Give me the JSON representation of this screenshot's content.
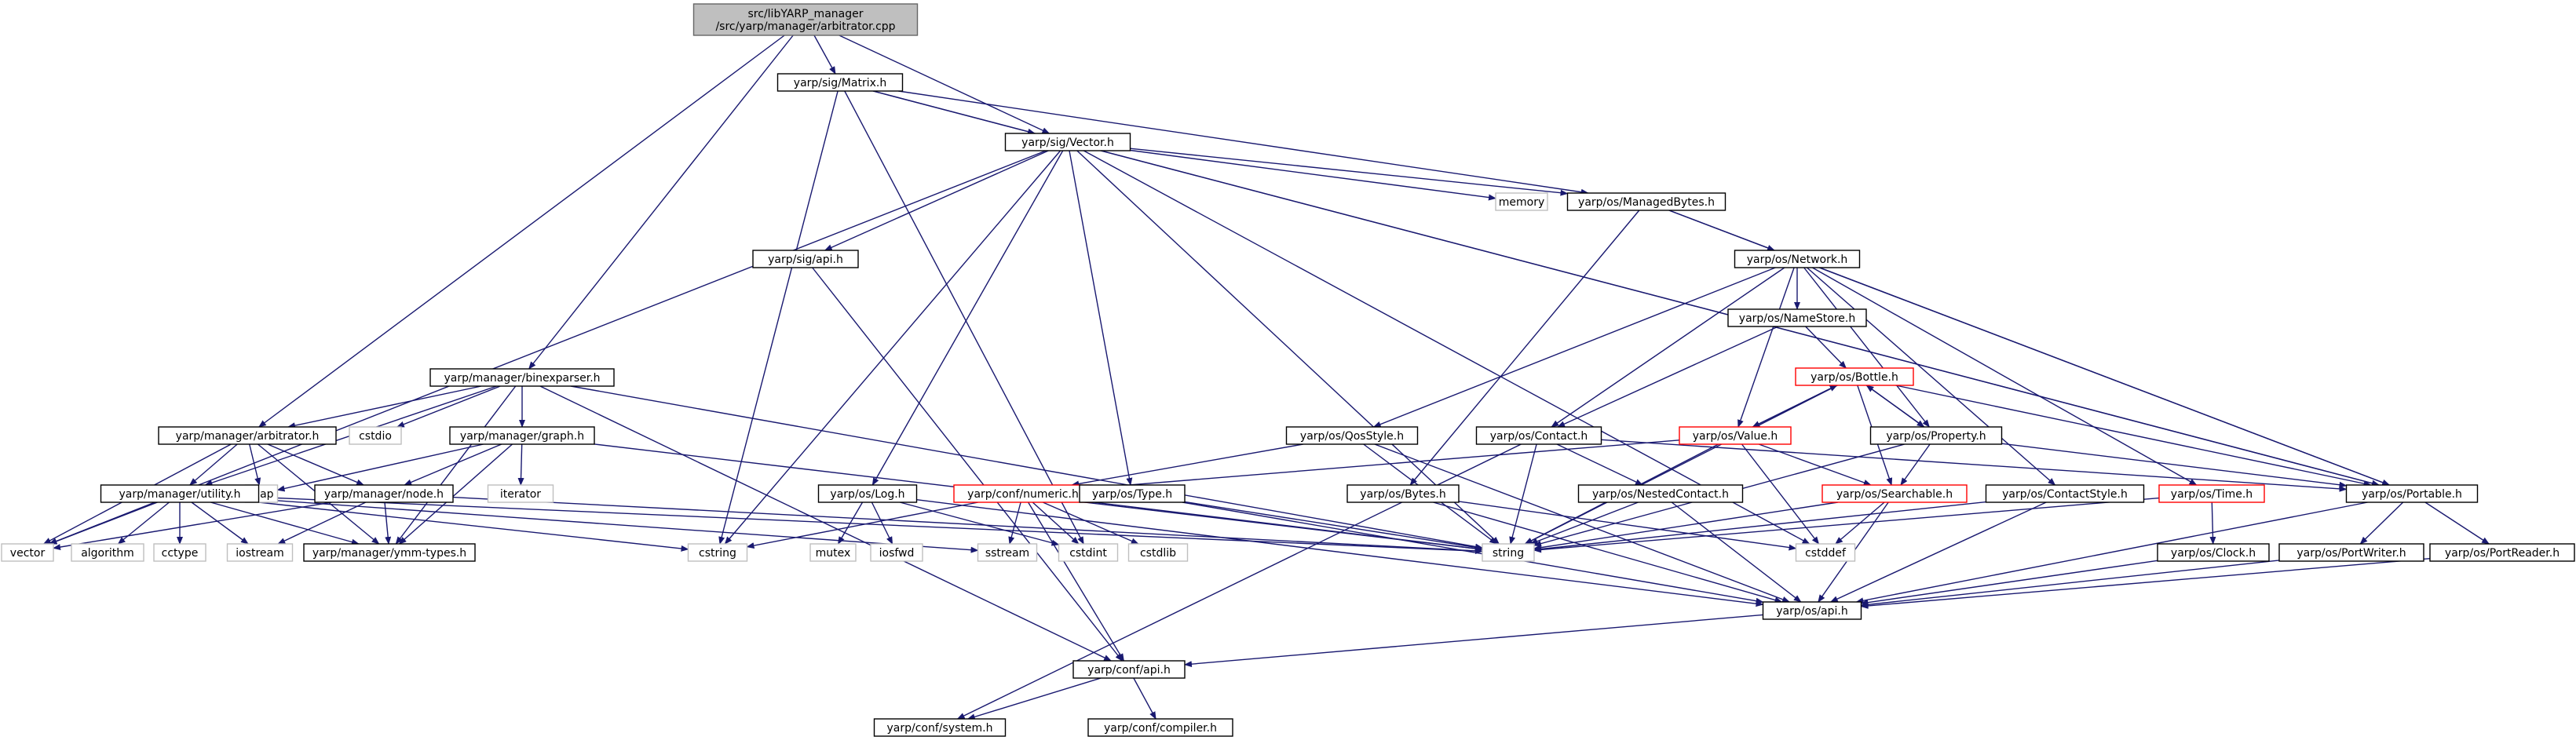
{
  "colors": {
    "edge": "#191970",
    "default_border": "#000000",
    "default_fill": "#ffffff",
    "root_fill": "#bfbfbf",
    "root_border": "#666666",
    "system_border": "#bfbfbf",
    "system_text": "#555555",
    "truncated_border": "#ff0000"
  },
  "nodes": [
    {
      "id": "root",
      "lines": [
        "src/libYARP_manager",
        "/src/yarp/manager/arbitrator.cpp"
      ],
      "kind": "root"
    },
    {
      "id": "matrix",
      "lines": [
        "yarp/sig/Matrix.h"
      ],
      "kind": "file"
    },
    {
      "id": "vector_h",
      "lines": [
        "yarp/sig/Vector.h"
      ],
      "kind": "file"
    },
    {
      "id": "memory",
      "lines": [
        "memory"
      ],
      "kind": "system"
    },
    {
      "id": "managedbytes",
      "lines": [
        "yarp/os/ManagedBytes.h"
      ],
      "kind": "file"
    },
    {
      "id": "sigapi",
      "lines": [
        "yarp/sig/api.h"
      ],
      "kind": "file"
    },
    {
      "id": "network",
      "lines": [
        "yarp/os/Network.h"
      ],
      "kind": "file"
    },
    {
      "id": "namestore",
      "lines": [
        "yarp/os/NameStore.h"
      ],
      "kind": "file"
    },
    {
      "id": "bottle",
      "lines": [
        "yarp/os/Bottle.h"
      ],
      "kind": "truncated"
    },
    {
      "id": "binexparser",
      "lines": [
        "yarp/manager/binexparser.h"
      ],
      "kind": "file"
    },
    {
      "id": "arbitrator",
      "lines": [
        "yarp/manager/arbitrator.h"
      ],
      "kind": "file"
    },
    {
      "id": "cstdio",
      "lines": [
        "cstdio"
      ],
      "kind": "system"
    },
    {
      "id": "graph",
      "lines": [
        "yarp/manager/graph.h"
      ],
      "kind": "file"
    },
    {
      "id": "qosstyle",
      "lines": [
        "yarp/os/QosStyle.h"
      ],
      "kind": "file"
    },
    {
      "id": "contact",
      "lines": [
        "yarp/os/Contact.h"
      ],
      "kind": "file"
    },
    {
      "id": "value",
      "lines": [
        "yarp/os/Value.h"
      ],
      "kind": "truncated"
    },
    {
      "id": "property",
      "lines": [
        "yarp/os/Property.h"
      ],
      "kind": "file"
    },
    {
      "id": "map",
      "lines": [
        "map"
      ],
      "kind": "system"
    },
    {
      "id": "iterator",
      "lines": [
        "iterator"
      ],
      "kind": "system"
    },
    {
      "id": "bytes",
      "lines": [
        "yarp/os/Bytes.h"
      ],
      "kind": "file"
    },
    {
      "id": "utility",
      "lines": [
        "yarp/manager/utility.h"
      ],
      "kind": "file"
    },
    {
      "id": "node",
      "lines": [
        "yarp/manager/node.h"
      ],
      "kind": "file"
    },
    {
      "id": "log",
      "lines": [
        "yarp/os/Log.h"
      ],
      "kind": "file"
    },
    {
      "id": "numeric",
      "lines": [
        "yarp/conf/numeric.h"
      ],
      "kind": "truncated"
    },
    {
      "id": "type",
      "lines": [
        "yarp/os/Type.h"
      ],
      "kind": "file"
    },
    {
      "id": "nestedcontact",
      "lines": [
        "yarp/os/NestedContact.h"
      ],
      "kind": "file"
    },
    {
      "id": "searchable",
      "lines": [
        "yarp/os/Searchable.h"
      ],
      "kind": "truncated"
    },
    {
      "id": "contactstyle",
      "lines": [
        "yarp/os/ContactStyle.h"
      ],
      "kind": "file"
    },
    {
      "id": "time",
      "lines": [
        "yarp/os/Time.h"
      ],
      "kind": "truncated"
    },
    {
      "id": "portable",
      "lines": [
        "yarp/os/Portable.h"
      ],
      "kind": "file"
    },
    {
      "id": "vector",
      "lines": [
        "vector"
      ],
      "kind": "system"
    },
    {
      "id": "algorithm",
      "lines": [
        "algorithm"
      ],
      "kind": "system"
    },
    {
      "id": "cctype",
      "lines": [
        "cctype"
      ],
      "kind": "system"
    },
    {
      "id": "iostream",
      "lines": [
        "iostream"
      ],
      "kind": "system"
    },
    {
      "id": "ymmtypes",
      "lines": [
        "yarp/manager/ymm-types.h"
      ],
      "kind": "file"
    },
    {
      "id": "cstring",
      "lines": [
        "cstring"
      ],
      "kind": "system"
    },
    {
      "id": "mutex",
      "lines": [
        "mutex"
      ],
      "kind": "system"
    },
    {
      "id": "iosfwd",
      "lines": [
        "iosfwd"
      ],
      "kind": "system"
    },
    {
      "id": "sstream",
      "lines": [
        "sstream"
      ],
      "kind": "system"
    },
    {
      "id": "cstdint",
      "lines": [
        "cstdint"
      ],
      "kind": "system"
    },
    {
      "id": "cstdlib",
      "lines": [
        "cstdlib"
      ],
      "kind": "system"
    },
    {
      "id": "string",
      "lines": [
        "string"
      ],
      "kind": "system"
    },
    {
      "id": "cstddef",
      "lines": [
        "cstddef"
      ],
      "kind": "system"
    },
    {
      "id": "clock",
      "lines": [
        "yarp/os/Clock.h"
      ],
      "kind": "file"
    },
    {
      "id": "portwriter",
      "lines": [
        "yarp/os/PortWriter.h"
      ],
      "kind": "file"
    },
    {
      "id": "portreader",
      "lines": [
        "yarp/os/PortReader.h"
      ],
      "kind": "file"
    },
    {
      "id": "osapi",
      "lines": [
        "yarp/os/api.h"
      ],
      "kind": "file"
    },
    {
      "id": "confapi",
      "lines": [
        "yarp/conf/api.h"
      ],
      "kind": "file"
    },
    {
      "id": "system",
      "lines": [
        "yarp/conf/system.h"
      ],
      "kind": "file"
    },
    {
      "id": "compiler",
      "lines": [
        "yarp/conf/compiler.h"
      ],
      "kind": "file"
    }
  ],
  "edges": [
    [
      "root",
      "matrix"
    ],
    [
      "root",
      "vector_h"
    ],
    [
      "root",
      "binexparser"
    ],
    [
      "root",
      "arbitrator"
    ],
    [
      "matrix",
      "vector_h"
    ],
    [
      "matrix",
      "cstring"
    ],
    [
      "matrix",
      "managedbytes"
    ],
    [
      "matrix",
      "portable"
    ],
    [
      "matrix",
      "cstdint"
    ],
    [
      "vector_h",
      "memory"
    ],
    [
      "vector_h",
      "managedbytes"
    ],
    [
      "vector_h",
      "sigapi"
    ],
    [
      "vector_h",
      "type"
    ],
    [
      "vector_h",
      "log"
    ],
    [
      "vector_h",
      "string"
    ],
    [
      "vector_h",
      "vector"
    ],
    [
      "vector_h",
      "portable"
    ],
    [
      "vector_h",
      "cstring"
    ],
    [
      "vector_h",
      "cstddef"
    ],
    [
      "managedbytes",
      "network"
    ],
    [
      "managedbytes",
      "bytes"
    ],
    [
      "managedbytes",
      "portable"
    ],
    [
      "sigapi",
      "confapi"
    ],
    [
      "network",
      "namestore"
    ],
    [
      "network",
      "contact"
    ],
    [
      "network",
      "qosstyle"
    ],
    [
      "network",
      "value"
    ],
    [
      "network",
      "property"
    ],
    [
      "network",
      "contactstyle"
    ],
    [
      "network",
      "time"
    ],
    [
      "network",
      "portable"
    ],
    [
      "namestore",
      "bottle"
    ],
    [
      "namestore",
      "contact"
    ],
    [
      "bottle",
      "value"
    ],
    [
      "bottle",
      "property"
    ],
    [
      "bottle",
      "searchable"
    ],
    [
      "bottle",
      "portable"
    ],
    [
      "bottle",
      "string"
    ],
    [
      "binexparser",
      "arbitrator"
    ],
    [
      "binexparser",
      "utility"
    ],
    [
      "binexparser",
      "graph"
    ],
    [
      "binexparser",
      "cstdio"
    ],
    [
      "binexparser",
      "ymmtypes"
    ],
    [
      "binexparser",
      "string"
    ],
    [
      "binexparser",
      "confapi"
    ],
    [
      "arbitrator",
      "map"
    ],
    [
      "arbitrator",
      "utility"
    ],
    [
      "arbitrator",
      "node"
    ],
    [
      "arbitrator",
      "vector"
    ],
    [
      "arbitrator",
      "ymmtypes"
    ],
    [
      "graph",
      "map"
    ],
    [
      "graph",
      "iterator"
    ],
    [
      "graph",
      "node"
    ],
    [
      "graph",
      "ymmtypes"
    ],
    [
      "graph",
      "string"
    ],
    [
      "qosstyle",
      "numeric"
    ],
    [
      "qosstyle",
      "string"
    ],
    [
      "qosstyle",
      "osapi"
    ],
    [
      "contact",
      "nestedcontact"
    ],
    [
      "contact",
      "string"
    ],
    [
      "contact",
      "portable"
    ],
    [
      "contact",
      "system"
    ],
    [
      "value",
      "bottle"
    ],
    [
      "value",
      "searchable"
    ],
    [
      "value",
      "string"
    ],
    [
      "value",
      "cstddef"
    ],
    [
      "value",
      "numeric"
    ],
    [
      "property",
      "bottle"
    ],
    [
      "property",
      "searchable"
    ],
    [
      "property",
      "portable"
    ],
    [
      "property",
      "string"
    ],
    [
      "bytes",
      "cstddef"
    ],
    [
      "bytes",
      "osapi"
    ],
    [
      "utility",
      "vector"
    ],
    [
      "utility",
      "algorithm"
    ],
    [
      "utility",
      "cctype"
    ],
    [
      "utility",
      "iostream"
    ],
    [
      "utility",
      "ymmtypes"
    ],
    [
      "utility",
      "cstring"
    ],
    [
      "utility",
      "sstream"
    ],
    [
      "utility",
      "string"
    ],
    [
      "node",
      "vector"
    ],
    [
      "node",
      "iostream"
    ],
    [
      "node",
      "ymmtypes"
    ],
    [
      "node",
      "string"
    ],
    [
      "log",
      "mutex"
    ],
    [
      "log",
      "iosfwd"
    ],
    [
      "log",
      "cstdint"
    ],
    [
      "log",
      "osapi"
    ],
    [
      "numeric",
      "cstring"
    ],
    [
      "numeric",
      "sstream"
    ],
    [
      "numeric",
      "cstdint"
    ],
    [
      "numeric",
      "cstdlib"
    ],
    [
      "numeric",
      "string"
    ],
    [
      "numeric",
      "confapi"
    ],
    [
      "type",
      "string"
    ],
    [
      "type",
      "osapi"
    ],
    [
      "nestedcontact",
      "string"
    ],
    [
      "nestedcontact",
      "osapi"
    ],
    [
      "searchable",
      "string"
    ],
    [
      "searchable",
      "osapi"
    ],
    [
      "searchable",
      "cstddef"
    ],
    [
      "contactstyle",
      "osapi"
    ],
    [
      "contactstyle",
      "string"
    ],
    [
      "time",
      "clock"
    ],
    [
      "time",
      "string"
    ],
    [
      "portable",
      "portwriter"
    ],
    [
      "portable",
      "portreader"
    ],
    [
      "portable",
      "osapi"
    ],
    [
      "clock",
      "osapi"
    ],
    [
      "portwriter",
      "osapi"
    ],
    [
      "portreader",
      "osapi"
    ],
    [
      "osapi",
      "confapi"
    ],
    [
      "confapi",
      "system"
    ],
    [
      "confapi",
      "compiler"
    ]
  ]
}
